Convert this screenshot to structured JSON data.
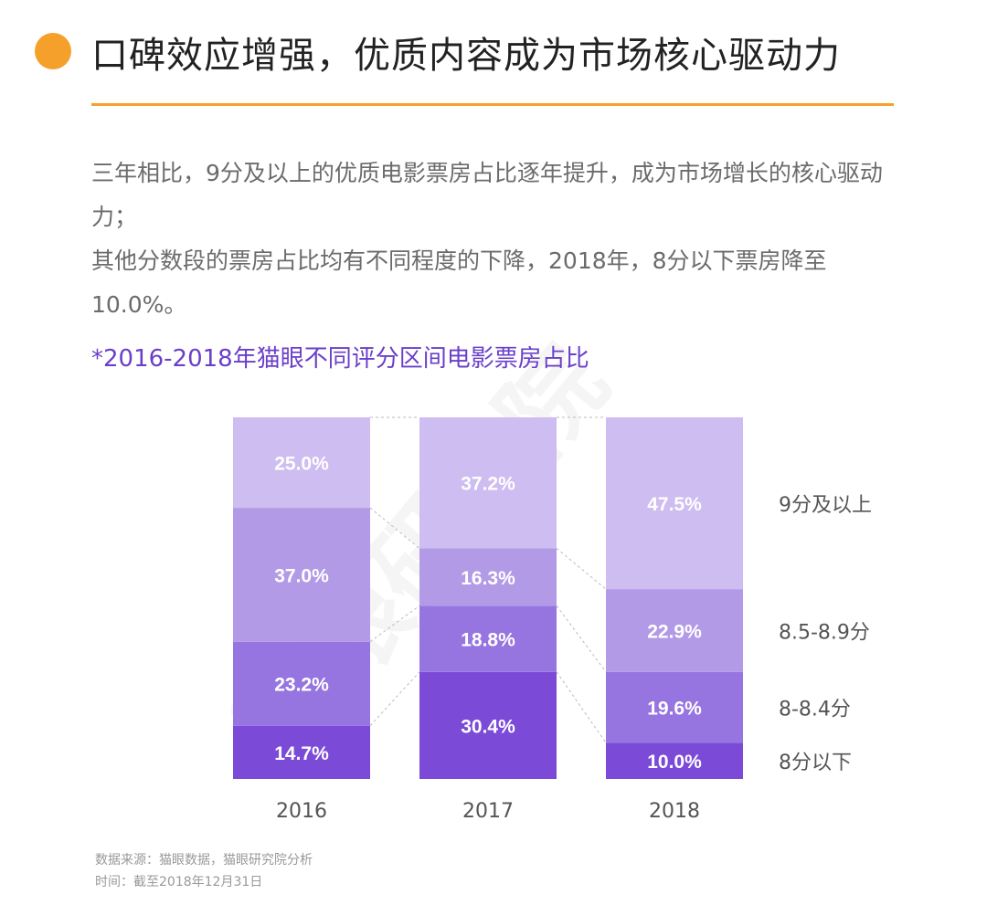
{
  "header": {
    "title": "口碑效应增强，优质内容成为市场核心驱动力",
    "accent_color": "#f5a02a"
  },
  "body": {
    "paragraphs": [
      "三年相比，9分及以上的优质电影票房占比逐年提升，成为市场增长的核心驱动力；",
      "其他分数段的票房占比均有不同程度的下降，2018年，8分以下票房降至10.0%。"
    ]
  },
  "watermark": "猫眼研究院",
  "chart_data": {
    "type": "bar",
    "stacked": true,
    "title": "*2016-2018年猫眼不同评分区间电影票房占比",
    "title_color": "#6a3fc9",
    "categories": [
      "2016",
      "2017",
      "2018"
    ],
    "series": [
      {
        "name": "8分以下",
        "values": [
          14.7,
          30.4,
          10.0
        ],
        "labels": [
          "14.7%",
          "30.4%",
          "10.0%"
        ],
        "color": "#7b4bd8"
      },
      {
        "name": "8-8.4分",
        "values": [
          23.2,
          18.8,
          19.6
        ],
        "labels": [
          "23.2%",
          "18.8%",
          "19.6%"
        ],
        "color": "#9675e0"
      },
      {
        "name": "8.5-8.9分",
        "values": [
          37.0,
          16.3,
          22.9
        ],
        "labels": [
          "37.0%",
          "16.3%",
          "22.9%"
        ],
        "color": "#b39ae7"
      },
      {
        "name": "9分及以上",
        "values": [
          25.0,
          37.2,
          47.5
        ],
        "labels": [
          "25.0%",
          "37.2%",
          "47.5%"
        ],
        "color": "#cebdf1"
      }
    ],
    "ylim": [
      0,
      100
    ],
    "legend": "right",
    "grid": false
  },
  "footer": {
    "source": "数据来源：猫眼数据，猫眼研究院分析",
    "date": "时间：截至2018年12月31日"
  }
}
